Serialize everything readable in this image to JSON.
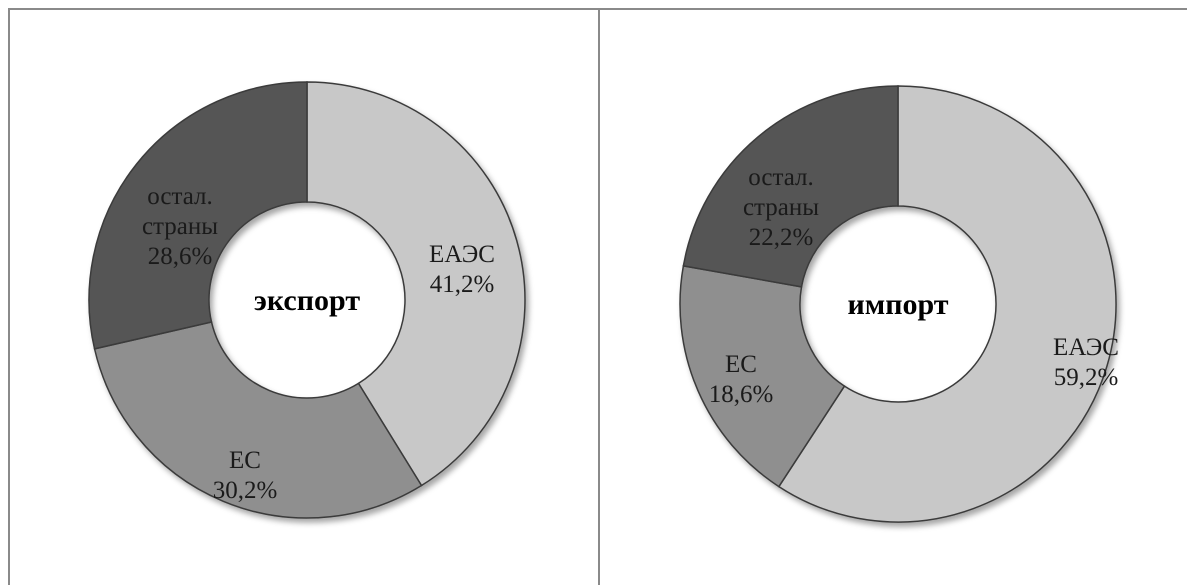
{
  "chart_data": [
    {
      "type": "pie",
      "center_label": "экспорт",
      "slices": [
        {
          "name": "ЕАЭС",
          "value": 41.2,
          "label": "41,2%",
          "color": "#c8c8c8"
        },
        {
          "name": "ЕС",
          "value": 30.2,
          "label": "30,2%",
          "color": "#8f8f8f"
        },
        {
          "name": "остал. страны",
          "value": 28.6,
          "label": "28,6%",
          "color": "#555555"
        }
      ]
    },
    {
      "type": "pie",
      "center_label": "импорт",
      "slices": [
        {
          "name": "ЕАЭС",
          "value": 59.2,
          "label": "59,2%",
          "color": "#c8c8c8"
        },
        {
          "name": "ЕС",
          "value": 18.6,
          "label": "18,6%",
          "color": "#8f8f8f"
        },
        {
          "name": "остал. страны",
          "value": 22.2,
          "label": "22,2%",
          "color": "#555555"
        }
      ]
    }
  ]
}
